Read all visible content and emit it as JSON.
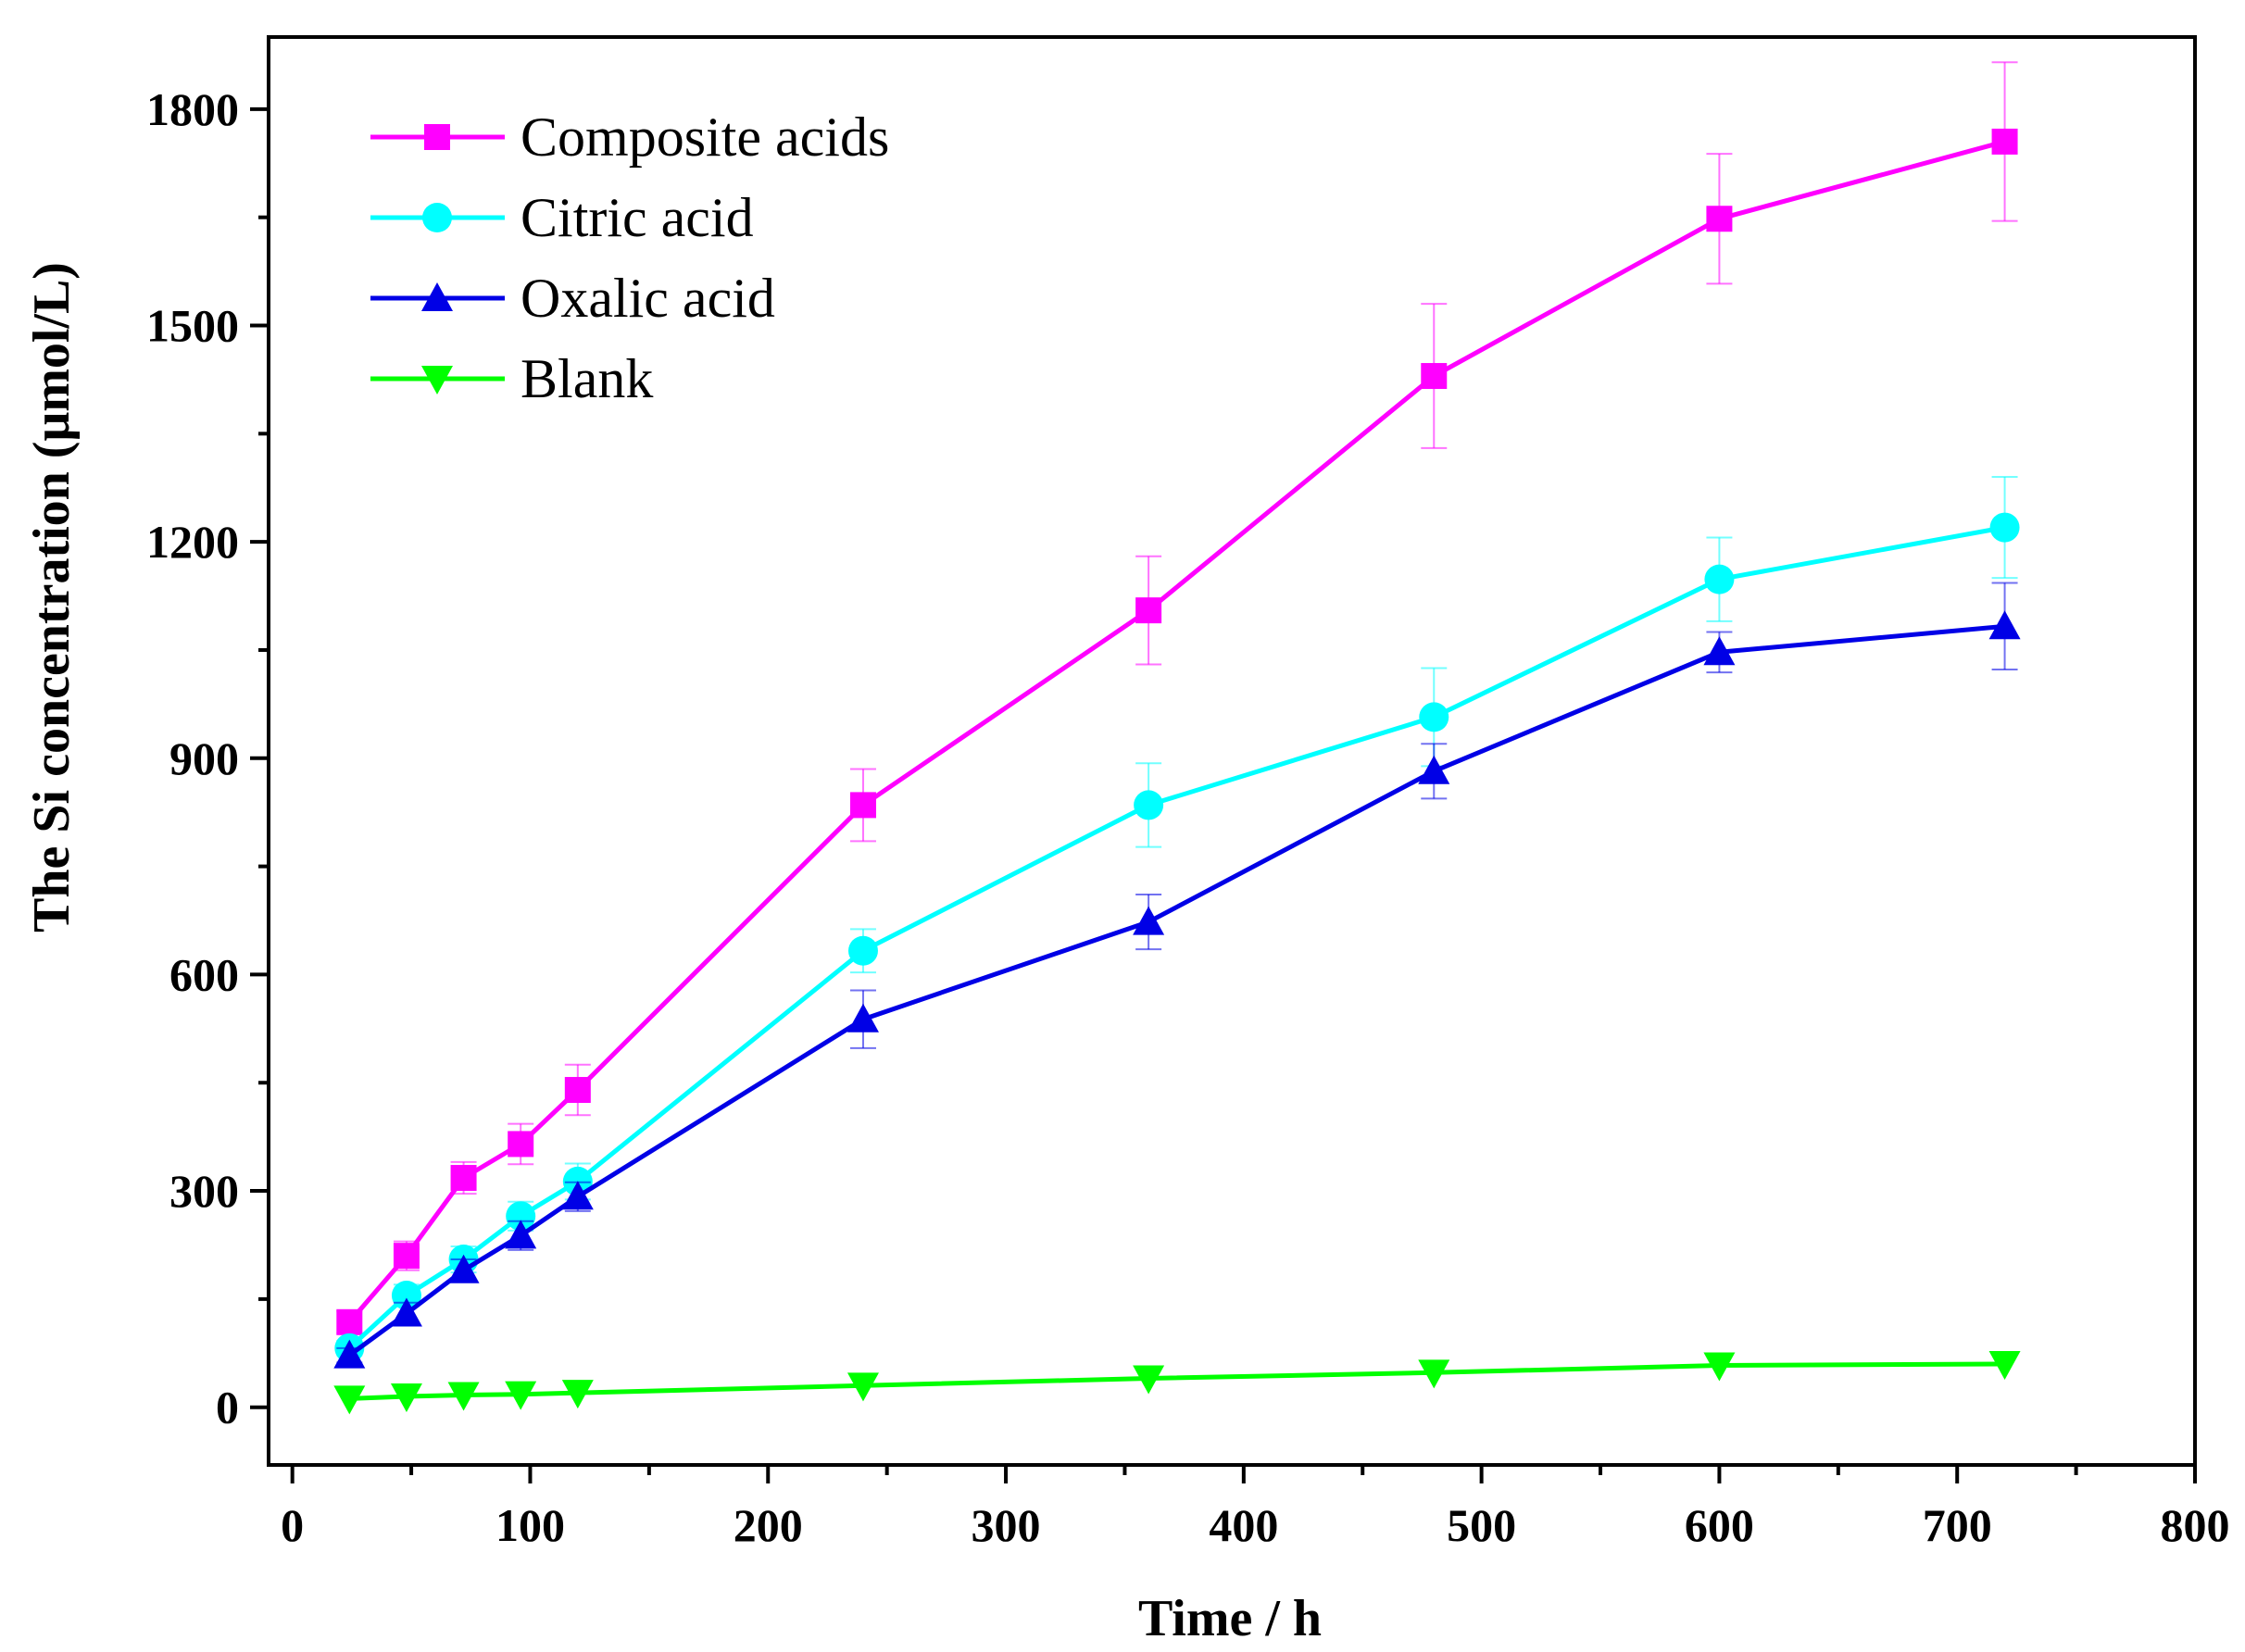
{
  "chart_data": {
    "type": "line",
    "title": "",
    "xlabel": "Time / h",
    "ylabel": "The Si concentration (μmol/L)",
    "xlim": [
      -10,
      800
    ],
    "ylim": [
      -80,
      1900
    ],
    "x_ticks": [
      0,
      100,
      200,
      300,
      400,
      500,
      600,
      700,
      800
    ],
    "y_ticks": [
      0,
      300,
      600,
      900,
      1200,
      1500,
      1800
    ],
    "x_tick_labels": [
      "0",
      "100",
      "200",
      "300",
      "400",
      "500",
      "600",
      "700",
      "800"
    ],
    "y_tick_labels": [
      "0",
      "300",
      "600",
      "900",
      "1200",
      "1500",
      "1800"
    ],
    "grid": false,
    "legend_position": "top-left",
    "x": [
      24,
      48,
      72,
      96,
      120,
      240,
      360,
      480,
      600,
      720
    ],
    "series": [
      {
        "name": "Composite acids",
        "color": "#ff00ff",
        "marker": "square",
        "values": [
          118,
          210,
          318,
          365,
          440,
          835,
          1105,
          1430,
          1648,
          1755
        ],
        "errors": [
          15,
          20,
          22,
          28,
          35,
          50,
          75,
          100,
          90,
          110
        ]
      },
      {
        "name": "Citric acid",
        "color": "#00ffff",
        "marker": "circle",
        "values": [
          82,
          155,
          205,
          265,
          313,
          633,
          835,
          957,
          1148,
          1220
        ],
        "errors": [
          10,
          15,
          18,
          20,
          25,
          30,
          58,
          68,
          58,
          70
        ]
      },
      {
        "name": "Oxalic acid",
        "color": "#0000e6",
        "marker": "triangle-up",
        "values": [
          72,
          130,
          190,
          238,
          292,
          538,
          673,
          882,
          1047,
          1083
        ],
        "errors": [
          10,
          15,
          15,
          20,
          20,
          40,
          38,
          38,
          28,
          60
        ]
      },
      {
        "name": "Blank",
        "color": "#00ff00",
        "marker": "triangle-down",
        "values": [
          12,
          15,
          17,
          18,
          20,
          30,
          40,
          48,
          58,
          60
        ],
        "errors": [
          0,
          0,
          0,
          0,
          0,
          0,
          0,
          0,
          0,
          0
        ]
      }
    ]
  }
}
